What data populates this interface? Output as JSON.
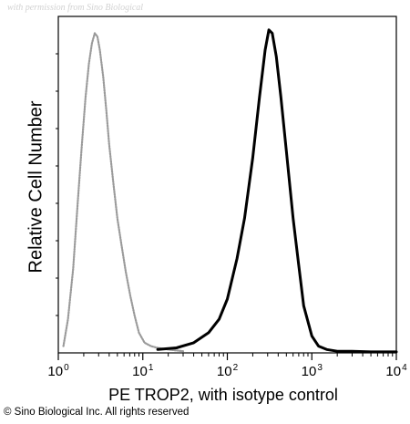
{
  "watermark": "with permission from Sino Biological",
  "copyright": "© Sino Biological Inc. All rights reserved",
  "chart_data": {
    "type": "line",
    "title": "",
    "xlabel": "PE TROP2, with isotype control",
    "ylabel": "Relative Cell Number",
    "x_scale": "log",
    "xlim": [
      1,
      10000
    ],
    "x_ticks": [
      {
        "value": 1,
        "base": "10",
        "exp": "0"
      },
      {
        "value": 10,
        "base": "10",
        "exp": "1"
      },
      {
        "value": 100,
        "base": "10",
        "exp": "2"
      },
      {
        "value": 1000,
        "base": "10",
        "exp": "3"
      },
      {
        "value": 10000,
        "base": "10",
        "exp": "4"
      }
    ],
    "ylim": [
      0,
      100
    ],
    "y_tick_labels": false,
    "grid": false,
    "legend": "none",
    "series": [
      {
        "color": "#9a9a9a",
        "style": "dotted",
        "x": [
          1.15,
          1.3,
          1.5,
          1.7,
          1.9,
          2.1,
          2.3,
          2.5,
          2.7,
          2.9,
          3.1,
          3.4,
          3.7,
          4.0,
          4.5,
          5.0,
          5.6,
          6.3,
          7.1,
          8.0,
          9.0,
          10.5,
          12.5,
          15,
          20,
          30
        ],
        "y": [
          2,
          10,
          25,
          45,
          62,
          76,
          86,
          92,
          95,
          94,
          90,
          82,
          72,
          62,
          50,
          40,
          32,
          24,
          17,
          11,
          6,
          3,
          2,
          1.5,
          1,
          0.5
        ]
      },
      {
        "color": "#000000",
        "style": "solid",
        "x": [
          15,
          25,
          40,
          60,
          80,
          100,
          130,
          160,
          200,
          240,
          280,
          310,
          340,
          380,
          430,
          500,
          600,
          700,
          800,
          1000,
          1200,
          1500,
          2000,
          3000,
          5000,
          10000
        ],
        "y": [
          1,
          1.5,
          3,
          6,
          10,
          16,
          28,
          40,
          58,
          76,
          90,
          96,
          95,
          88,
          76,
          60,
          40,
          26,
          14,
          5,
          2,
          1,
          0.5,
          0.5,
          0.3,
          0.3
        ]
      }
    ]
  }
}
